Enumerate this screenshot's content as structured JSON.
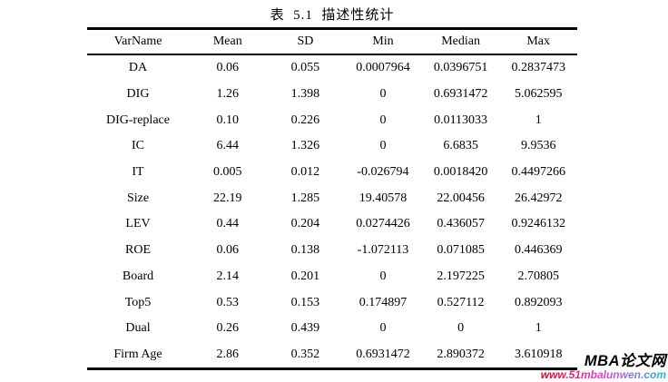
{
  "title": "表  5.1  描述性统计",
  "table": {
    "columns": [
      "VarName",
      "Mean",
      "SD",
      "Min",
      "Median",
      "Max"
    ],
    "rows": [
      {
        "cells": [
          "DA",
          "0.06",
          "0.055",
          "0.0007964",
          "0.0396751",
          "0.2837473"
        ]
      },
      {
        "cells": [
          "DIG",
          "1.26",
          "1.398",
          "0",
          "0.6931472",
          "5.062595"
        ]
      },
      {
        "cells": [
          "DIG-replace",
          "0.10",
          "0.226",
          "0",
          "0.0113033",
          "1"
        ]
      },
      {
        "cells": [
          "IC",
          "6.44",
          "1.326",
          "0",
          "6.6835",
          "9.9536"
        ]
      },
      {
        "cells": [
          "IT",
          "0.005",
          "0.012",
          "-0.026794",
          "0.0018420",
          "0.4497266"
        ]
      },
      {
        "cells": [
          "Size",
          "22.19",
          "1.285",
          "19.40578",
          "22.00456",
          "26.42972"
        ]
      },
      {
        "cells": [
          "LEV",
          "0.44",
          "0.204",
          "0.0274426",
          "0.436057",
          "0.9246132"
        ]
      },
      {
        "cells": [
          "ROE",
          "0.06",
          "0.138",
          "-1.072113",
          "0.071085",
          "0.446369"
        ]
      },
      {
        "cells": [
          "Board",
          "2.14",
          "0.201",
          "0",
          "2.197225",
          "2.70805"
        ]
      },
      {
        "cells": [
          "Top5",
          "0.53",
          "0.153",
          "0.174897",
          "0.527112",
          "0.892093"
        ]
      },
      {
        "cells": [
          "Dual",
          "0.26",
          "0.439",
          "0",
          "0",
          "1"
        ]
      },
      {
        "cells": [
          "Firm Age",
          "2.86",
          "0.352",
          "0.6931472",
          "2.890372",
          "3.610918"
        ]
      }
    ]
  },
  "watermark": {
    "site_name": "MBA论文网",
    "site_url": "www.51mbalunwen.com",
    "name_color": "#000000",
    "url_gradient_colors": [
      "#e4001e",
      "#e83fd4",
      "#18b8d8"
    ]
  }
}
